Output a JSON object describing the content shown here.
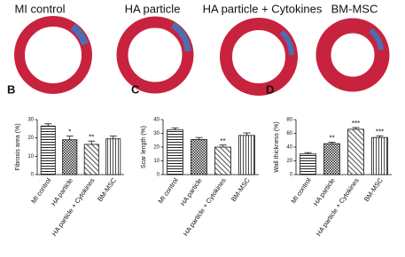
{
  "images": {
    "labels": [
      "MI control",
      "HA particle",
      "HA particle + Cytokines",
      "BM-MSC"
    ]
  },
  "chart_data": [
    {
      "type": "bar",
      "panel_label": "B",
      "y_label": "Fibrosis area (%)",
      "categories": [
        "MI control",
        "HA particle",
        "HA particle + Cytokines",
        "BM-MSC"
      ],
      "values": [
        26.5,
        19,
        16.5,
        19.5
      ],
      "errors": [
        1.2,
        2,
        1.8,
        1.5
      ],
      "significance": [
        null,
        "*",
        "**",
        null
      ],
      "ylim": [
        0,
        30
      ],
      "yticks": [
        0,
        10,
        20,
        30
      ]
    },
    {
      "type": "bar",
      "panel_label": "C",
      "y_label": "Scar length (%)",
      "categories": [
        "MI control",
        "HA particle",
        "HA particle + Cytokines",
        "BM-MSC"
      ],
      "values": [
        32.5,
        25.5,
        20,
        28.5
      ],
      "errors": [
        1.5,
        1.5,
        1.5,
        1.8
      ],
      "significance": [
        null,
        null,
        "**",
        null
      ],
      "ylim": [
        0,
        40
      ],
      "yticks": [
        0,
        10,
        20,
        30,
        40
      ]
    },
    {
      "type": "bar",
      "panel_label": "D",
      "y_label": "Wall thickness (%)",
      "categories": [
        "MI control",
        "HA particle",
        "HA particle + Cytokines",
        "BM-MSC"
      ],
      "values": [
        30,
        45,
        66,
        54
      ],
      "errors": [
        2,
        2,
        2.5,
        2.5
      ],
      "significance": [
        null,
        "**",
        "***",
        "***"
      ],
      "ylim": [
        0,
        80
      ],
      "yticks": [
        0,
        20,
        40,
        60,
        80
      ]
    }
  ]
}
